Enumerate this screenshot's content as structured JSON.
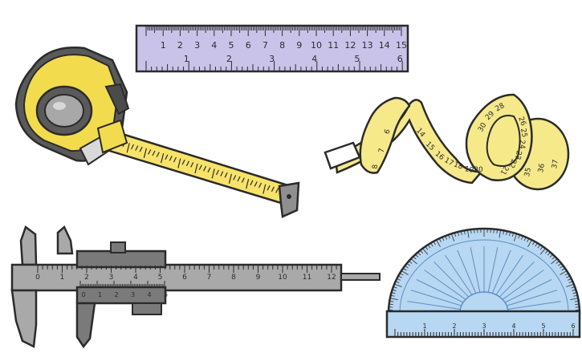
{
  "ruler": {
    "cm_labels": [
      "1",
      "2",
      "3",
      "4",
      "5",
      "6",
      "7",
      "8",
      "9",
      "10",
      "11",
      "12",
      "13",
      "14",
      "15"
    ],
    "inch_labels": [
      "1",
      "2",
      "3",
      "4",
      "5",
      "6"
    ],
    "color": "#c9c3ea"
  },
  "tape_measure": {
    "case_color": "#5a5a5a",
    "accent_color": "#f2dc4e",
    "blade_color": "#f7e36a"
  },
  "sewing_tape": {
    "labels_strip": [
      "14",
      "15",
      "16",
      "17",
      "18",
      "19",
      "20"
    ],
    "labels_left": [
      "6",
      "7",
      "8"
    ],
    "labels_coil_top": [
      "30",
      "29",
      "28"
    ],
    "labels_coil": [
      "26",
      "25",
      "24",
      "23",
      "22",
      "21"
    ],
    "labels_roll": [
      "35",
      "36",
      "37"
    ],
    "color": "#f6e98a"
  },
  "caliper": {
    "scale_labels": [
      "0",
      "1",
      "2",
      "3",
      "4",
      "5",
      "6",
      "7",
      "8",
      "9",
      "10",
      "11",
      "12"
    ],
    "vernier_labels": [
      "0",
      "1",
      "2",
      "3",
      "4",
      "5"
    ],
    "color": "#a9a9a9",
    "dark_color": "#7a7a7a"
  },
  "protractor": {
    "scale_labels": [
      "1",
      "2",
      "3",
      "4",
      "5",
      "6"
    ],
    "color": "#b7d7f2",
    "line_color": "#5f8fc4"
  }
}
